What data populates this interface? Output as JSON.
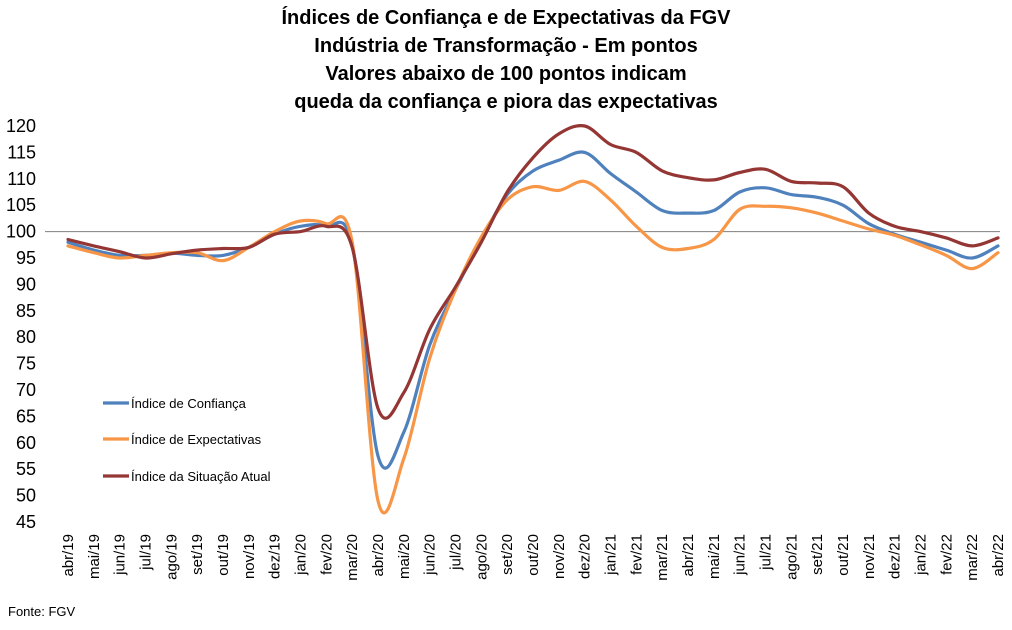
{
  "chart_data": {
    "type": "line",
    "title": [
      "Índices de Confiança e de Expectativas da FGV",
      "Indústria de Transformação - Em pontos",
      "Valores abaixo de 100 pontos indicam",
      "queda da confiança e piora das expectativas"
    ],
    "xlabel": "",
    "ylabel": "",
    "ylim": [
      45,
      120
    ],
    "yticks": [
      120,
      115,
      110,
      105,
      100,
      95,
      90,
      85,
      80,
      75,
      70,
      65,
      60,
      55,
      50,
      45
    ],
    "reference_line": 100,
    "grid": false,
    "legend_position": "lower-left",
    "categories": [
      "abr/19",
      "mai/19",
      "jun/19",
      "jul/19",
      "ago/19",
      "set/19",
      "out/19",
      "nov/19",
      "dez/19",
      "jan/20",
      "fev/20",
      "mar/20",
      "abr/20",
      "mai/20",
      "jun/20",
      "jul/20",
      "ago/20",
      "set/20",
      "out/20",
      "nov/20",
      "dez/20",
      "jan/21",
      "fev/21",
      "mar/21",
      "abr/21",
      "mai/21",
      "jun/21",
      "jul/21",
      "ago/21",
      "set/21",
      "out/21",
      "nov/21",
      "dez/21",
      "jan/22",
      "fev/22",
      "mar/22",
      "abr/22"
    ],
    "series": [
      {
        "name": "Índice de Confiança",
        "color": "#4F81BD",
        "values": [
          98.0,
          96.5,
          95.5,
          95.5,
          95.9,
          95.5,
          95.5,
          97.0,
          99.5,
          101.0,
          101.0,
          97.5,
          57.5,
          62.0,
          78.5,
          89.0,
          98.5,
          107.0,
          111.5,
          113.5,
          115.0,
          111.0,
          107.5,
          104.0,
          103.5,
          104.0,
          107.5,
          108.3,
          107.0,
          106.5,
          105.0,
          101.5,
          99.5,
          98.0,
          96.5,
          95.0,
          97.3
        ]
      },
      {
        "name": "Índice de Expectativas",
        "color": "#F79646",
        "values": [
          97.3,
          96.0,
          95.0,
          95.5,
          96.0,
          96.0,
          94.5,
          97.0,
          100.0,
          102.0,
          101.5,
          98.0,
          49.0,
          57.0,
          76.0,
          89.0,
          99.0,
          106.0,
          108.5,
          107.8,
          109.5,
          106.0,
          101.0,
          97.0,
          96.8,
          98.5,
          104.2,
          104.8,
          104.5,
          103.5,
          102.0,
          100.5,
          99.3,
          97.5,
          95.5,
          93.0,
          96.0
        ]
      },
      {
        "name": "Índice da Situação Atual",
        "color": "#943634",
        "values": [
          98.5,
          97.3,
          96.2,
          95.0,
          95.8,
          96.5,
          96.8,
          97.0,
          99.5,
          100.0,
          101.0,
          97.0,
          66.5,
          69.5,
          81.5,
          89.5,
          98.0,
          107.5,
          114.0,
          118.5,
          120.0,
          116.5,
          115.0,
          111.5,
          110.2,
          109.8,
          111.2,
          111.8,
          109.5,
          109.2,
          108.5,
          103.5,
          101.0,
          100.0,
          98.8,
          97.3,
          98.8
        ]
      }
    ]
  },
  "source": "Fonte: FGV"
}
